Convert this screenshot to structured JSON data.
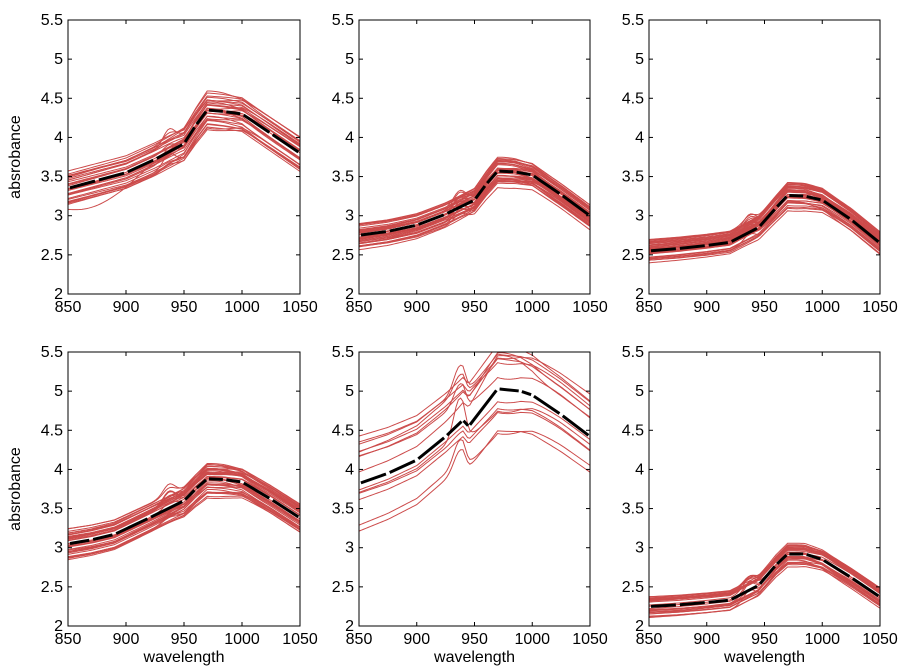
{
  "chart_data": [
    {
      "type": "line",
      "position": "top-left",
      "xlabel": "",
      "ylabel": "absrobance",
      "xlim": [
        850,
        1050
      ],
      "ylim": [
        2,
        5.5
      ],
      "xticks": [
        "850",
        "900",
        "950",
        "1000",
        "1050"
      ],
      "yticks": [
        "2",
        "2.5",
        "3",
        "3.5",
        "4",
        "4.5",
        "5",
        "5.5"
      ],
      "colors": {
        "spectra": "#cc4b4b",
        "mean": "#000000"
      },
      "spectra_count": 30,
      "spread": 0.12,
      "low_outlier": true,
      "mean": {
        "x": [
          850,
          875,
          900,
          925,
          950,
          960,
          970,
          985,
          1000,
          1025,
          1050
        ],
        "y": [
          3.35,
          3.45,
          3.55,
          3.72,
          3.92,
          4.15,
          4.35,
          4.33,
          4.3,
          4.05,
          3.8
        ]
      }
    },
    {
      "type": "line",
      "position": "top-middle",
      "xlabel": "",
      "ylabel": "",
      "xlim": [
        850,
        1050
      ],
      "ylim": [
        2,
        5.5
      ],
      "xticks": [
        "850",
        "900",
        "950",
        "1000",
        "1050"
      ],
      "yticks": [
        "2",
        "2.5",
        "3",
        "3.5",
        "4",
        "4.5",
        "5",
        "5.5"
      ],
      "colors": {
        "spectra": "#cc4b4b",
        "mean": "#000000"
      },
      "spectra_count": 40,
      "spread": 0.09,
      "low_outlier": false,
      "mean": {
        "x": [
          850,
          875,
          900,
          925,
          950,
          960,
          970,
          985,
          1000,
          1025,
          1050
        ],
        "y": [
          2.75,
          2.8,
          2.88,
          3.02,
          3.2,
          3.4,
          3.57,
          3.56,
          3.52,
          3.27,
          3.0
        ]
      }
    },
    {
      "type": "line",
      "position": "top-right",
      "xlabel": "",
      "ylabel": "",
      "xlim": [
        850,
        1050
      ],
      "ylim": [
        2,
        5.5
      ],
      "xticks": [
        "850",
        "900",
        "950",
        "1000",
        "1050"
      ],
      "yticks": [
        "2",
        "2.5",
        "3",
        "3.5",
        "4",
        "4.5",
        "5",
        "5.5"
      ],
      "colors": {
        "spectra": "#cc4b4b",
        "mean": "#000000"
      },
      "spectra_count": 40,
      "spread": 0.08,
      "low_outlier": false,
      "mean": {
        "x": [
          850,
          875,
          900,
          920,
          945,
          960,
          970,
          985,
          1000,
          1025,
          1050
        ],
        "y": [
          2.55,
          2.58,
          2.62,
          2.66,
          2.85,
          3.1,
          3.26,
          3.25,
          3.2,
          2.95,
          2.65
        ]
      }
    },
    {
      "type": "line",
      "position": "bottom-left",
      "xlabel": "wavelength",
      "ylabel": "absrobance",
      "xlim": [
        850,
        1050
      ],
      "ylim": [
        2,
        5.5
      ],
      "xticks": [
        "850",
        "900",
        "950",
        "1000",
        "1050"
      ],
      "yticks": [
        "2",
        "2.5",
        "3",
        "3.5",
        "4",
        "4.5",
        "5",
        "5.5"
      ],
      "colors": {
        "spectra": "#cc4b4b",
        "mean": "#000000"
      },
      "spectra_count": 40,
      "spread": 0.1,
      "low_outlier": false,
      "mean": {
        "x": [
          850,
          870,
          890,
          920,
          950,
          960,
          970,
          985,
          1000,
          1025,
          1050
        ],
        "y": [
          3.05,
          3.1,
          3.17,
          3.38,
          3.6,
          3.75,
          3.88,
          3.87,
          3.84,
          3.62,
          3.38
        ]
      }
    },
    {
      "type": "line",
      "position": "bottom-middle",
      "xlabel": "wavelength",
      "ylabel": "",
      "xlim": [
        850,
        1050
      ],
      "ylim": [
        2,
        5.5
      ],
      "xticks": [
        "850",
        "900",
        "950",
        "1000",
        "1050"
      ],
      "yticks": [
        "2",
        "2.5",
        "3",
        "3.5",
        "4",
        "4.5",
        "5",
        "5.5"
      ],
      "colors": {
        "spectra": "#cc4b4b",
        "mean": "#000000"
      },
      "spectra_count": 14,
      "spread": 0.3,
      "low_outlier": false,
      "mean": {
        "x": [
          850,
          875,
          900,
          925,
          940,
          945,
          970,
          990,
          1000,
          1025,
          1050
        ],
        "y": [
          3.82,
          3.95,
          4.12,
          4.42,
          4.63,
          4.55,
          5.03,
          5.0,
          4.95,
          4.7,
          4.42
        ]
      }
    },
    {
      "type": "line",
      "position": "bottom-right",
      "xlabel": "wavelength",
      "ylabel": "",
      "xlim": [
        850,
        1050
      ],
      "ylim": [
        2,
        5.5
      ],
      "xticks": [
        "850",
        "900",
        "950",
        "1000",
        "1050"
      ],
      "yticks": [
        "2",
        "2.5",
        "3",
        "3.5",
        "4",
        "4.5",
        "5",
        "5.5"
      ],
      "colors": {
        "spectra": "#cc4b4b",
        "mean": "#000000"
      },
      "spectra_count": 30,
      "spread": 0.08,
      "low_outlier": false,
      "mean": {
        "x": [
          850,
          875,
          900,
          920,
          945,
          960,
          970,
          985,
          1000,
          1025,
          1050
        ],
        "y": [
          2.25,
          2.27,
          2.3,
          2.33,
          2.52,
          2.78,
          2.92,
          2.92,
          2.85,
          2.62,
          2.37
        ]
      }
    }
  ]
}
